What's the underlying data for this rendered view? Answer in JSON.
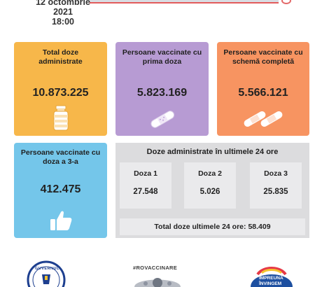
{
  "header": {
    "date_line": "12 octombrie 2021",
    "time_line": "18:00"
  },
  "cards": {
    "total_doses": {
      "title": "Total doze administrate",
      "value": "10.873.225",
      "icon": "vaccine-vial-icon",
      "color": "#f7b74a"
    },
    "first_dose": {
      "title": "Persoane vaccinate cu prima doza",
      "value": "5.823.169",
      "icon": "single-bandage-icon",
      "color": "#b79bd3"
    },
    "full_schedule": {
      "title": "Persoane vaccinate cu schemă completă",
      "value": "5.566.121",
      "icon": "double-bandage-icon",
      "color": "#f79461"
    },
    "third_dose": {
      "title": "Persoane vaccinate cu doza a 3-a",
      "value": "412.475",
      "icon": "thumbs-up-icon",
      "color": "#74c6ea"
    }
  },
  "last24h": {
    "title": "Doze administrate în ultimele 24 ore",
    "doses": [
      {
        "label": "Doza 1",
        "value": "27.548"
      },
      {
        "label": "Doza 2",
        "value": "5.026"
      },
      {
        "label": "Doza 3",
        "value": "25.835"
      }
    ],
    "total_label": "Total doze ultimele 24 ore:",
    "total_value": "58.409"
  },
  "footer": {
    "gov_logo_text": "GUVERNUL",
    "hashtag": "#ROVACCINARE",
    "partner_logo_line1": "ÎMPREUNĂ",
    "partner_logo_line2": "ÎNVINGEM"
  }
}
